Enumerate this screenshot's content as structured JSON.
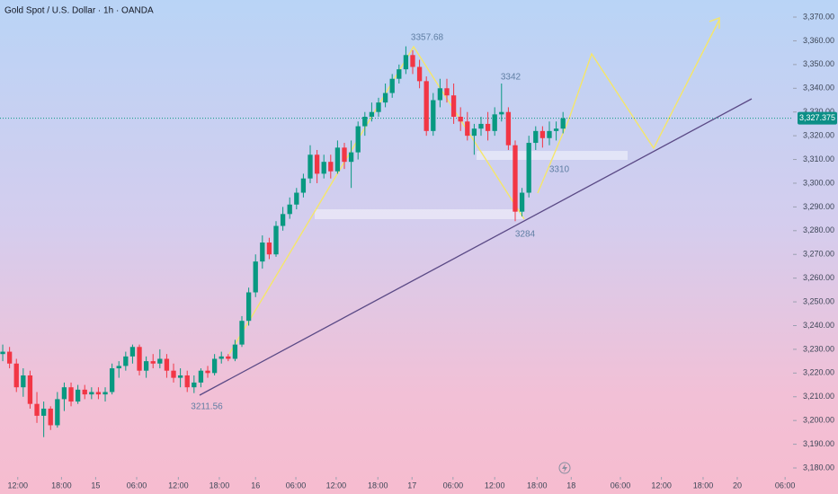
{
  "chart_data": {
    "type": "candlestick",
    "title": "Gold Spot / U.S. Dollar · 1h · OANDA",
    "up_color": "#089981",
    "down_color": "#f23645",
    "open": [
      3228,
      3229,
      3224,
      3214,
      3219,
      3207,
      3202,
      3205,
      3198,
      3209,
      3214,
      3208,
      3213,
      3211,
      3212,
      3211,
      3212,
      3222,
      3223,
      3227,
      3231,
      3221,
      3225,
      3224,
      3226,
      3221,
      3218,
      3219,
      3214,
      3216,
      3221,
      3220,
      3226,
      3227,
      3226,
      3232,
      3242,
      3254,
      3267,
      3275,
      3270,
      3282,
      3287,
      3291,
      3296,
      3302,
      3312,
      3304,
      3309,
      3305,
      3315,
      3309,
      3313,
      3324,
      3328,
      3330,
      3334,
      3338,
      3344,
      3348,
      3354,
      3349,
      3343,
      3322,
      3335,
      3340,
      3337,
      3328,
      3326,
      3320,
      3323,
      3325,
      3322,
      3329,
      3330,
      3316,
      3288,
      3296,
      3317,
      3322,
      3319,
      3322,
      3323
    ],
    "high": [
      3232,
      3231,
      3226,
      3222,
      3221,
      3212,
      3208,
      3206,
      3212,
      3216,
      3216,
      3215,
      3215,
      3214,
      3214,
      3214,
      3224,
      3225,
      3229,
      3232,
      3232,
      3227,
      3228,
      3230,
      3228,
      3224,
      3222,
      3221,
      3219,
      3222,
      3223,
      3228,
      3229,
      3228,
      3234,
      3244,
      3256,
      3270,
      3278,
      3277,
      3284,
      3290,
      3294,
      3298,
      3304,
      3316,
      3314,
      3312,
      3312,
      3318,
      3317,
      3318,
      3326,
      3330,
      3334,
      3336,
      3342,
      3346,
      3350,
      3357.68,
      3356,
      3352,
      3345,
      3338,
      3344,
      3344,
      3342,
      3332,
      3330,
      3325,
      3328,
      3330,
      3332,
      3342,
      3332,
      3318,
      3298,
      3320,
      3324,
      3324,
      3326,
      3326,
      3330
    ],
    "low": [
      3225,
      3222,
      3212,
      3210,
      3205,
      3199,
      3193,
      3196,
      3197,
      3204,
      3206,
      3207,
      3209,
      3209,
      3209,
      3208,
      3211,
      3218,
      3221,
      3224,
      3219,
      3218,
      3222,
      3222,
      3218,
      3216,
      3214,
      3212,
      3211.56,
      3214,
      3218,
      3219,
      3224,
      3225,
      3225,
      3231,
      3240,
      3252,
      3264,
      3268,
      3269,
      3280,
      3285,
      3289,
      3294,
      3300,
      3300,
      3302,
      3302,
      3304,
      3306,
      3298,
      3310,
      3320,
      3326,
      3328,
      3332,
      3336,
      3342,
      3346,
      3346,
      3340,
      3320,
      3320,
      3332,
      3334,
      3325,
      3322,
      3318,
      3312,
      3320,
      3318,
      3320,
      3326,
      3314,
      3284,
      3286,
      3294,
      3314,
      3315,
      3316,
      3318,
      3321
    ],
    "close": [
      3229,
      3224,
      3214,
      3219,
      3207,
      3202,
      3205,
      3198,
      3209,
      3214,
      3208,
      3213,
      3211,
      3212,
      3211,
      3212,
      3222,
      3223,
      3227,
      3231,
      3221,
      3225,
      3224,
      3226,
      3221,
      3218,
      3219,
      3214,
      3216,
      3221,
      3220,
      3226,
      3227,
      3226,
      3232,
      3242,
      3254,
      3267,
      3275,
      3270,
      3282,
      3287,
      3291,
      3296,
      3302,
      3312,
      3304,
      3309,
      3305,
      3315,
      3309,
      3313,
      3324,
      3328,
      3330,
      3334,
      3338,
      3344,
      3348,
      3354,
      3349,
      3343,
      3322,
      3335,
      3340,
      3337,
      3328,
      3326,
      3320,
      3323,
      3325,
      3322,
      3329,
      3330,
      3316,
      3288,
      3296,
      3317,
      3322,
      3319,
      3322,
      3323,
      3327.375
    ],
    "xlim": [
      -0.4,
      115.4
    ],
    "xticks": [
      {
        "value": 2.2,
        "label": "12:00"
      },
      {
        "value": 8.6,
        "label": "18:00"
      },
      {
        "value": 13.6,
        "label": "15"
      },
      {
        "value": 19.6,
        "label": "06:00"
      },
      {
        "value": 25.7,
        "label": "12:00"
      },
      {
        "value": 31.7,
        "label": "18:00"
      },
      {
        "value": 37.0,
        "label": "16"
      },
      {
        "value": 42.9,
        "label": "06:00"
      },
      {
        "value": 48.8,
        "label": "12:00"
      },
      {
        "value": 54.9,
        "label": "18:00"
      },
      {
        "value": 59.9,
        "label": "17"
      },
      {
        "value": 65.9,
        "label": "06:00"
      },
      {
        "value": 72.0,
        "label": "12:00"
      },
      {
        "value": 78.2,
        "label": "18:00"
      },
      {
        "value": 83.2,
        "label": "18"
      },
      {
        "value": 90.4,
        "label": "06:00"
      },
      {
        "value": 96.4,
        "label": "12:00"
      },
      {
        "value": 102.5,
        "label": "18:00"
      },
      {
        "value": 107.5,
        "label": "20"
      },
      {
        "value": 114.5,
        "label": "06:00"
      }
    ],
    "ylim": [
      3176.6,
      3377.2
    ],
    "yticks": [
      {
        "value": 3180,
        "label": "3,180.00"
      },
      {
        "value": 3190,
        "label": "3,190.00"
      },
      {
        "value": 3200,
        "label": "3,200.00"
      },
      {
        "value": 3210,
        "label": "3,210.00"
      },
      {
        "value": 3220,
        "label": "3,220.00"
      },
      {
        "value": 3230,
        "label": "3,230.00"
      },
      {
        "value": 3240,
        "label": "3,240.00"
      },
      {
        "value": 3250,
        "label": "3,250.00"
      },
      {
        "value": 3260,
        "label": "3,260.00"
      },
      {
        "value": 3270,
        "label": "3,270.00"
      },
      {
        "value": 3280,
        "label": "3,280.00"
      },
      {
        "value": 3290,
        "label": "3,290.00"
      },
      {
        "value": 3300,
        "label": "3,300.00"
      },
      {
        "value": 3310,
        "label": "3,310.00"
      },
      {
        "value": 3320,
        "label": "3,320.00"
      },
      {
        "value": 3330,
        "label": "3,330.00"
      },
      {
        "value": 3340,
        "label": "3,340.00"
      },
      {
        "value": 3350,
        "label": "3,350.00"
      },
      {
        "value": 3360,
        "label": "3,360.00"
      },
      {
        "value": 3370,
        "label": "3,370.00"
      }
    ],
    "last_price": {
      "value": 3327.375,
      "label": "3,327.375"
    },
    "annotations": [
      "3357.68",
      "3342",
      "3310",
      "3284",
      "3211.56"
    ]
  }
}
